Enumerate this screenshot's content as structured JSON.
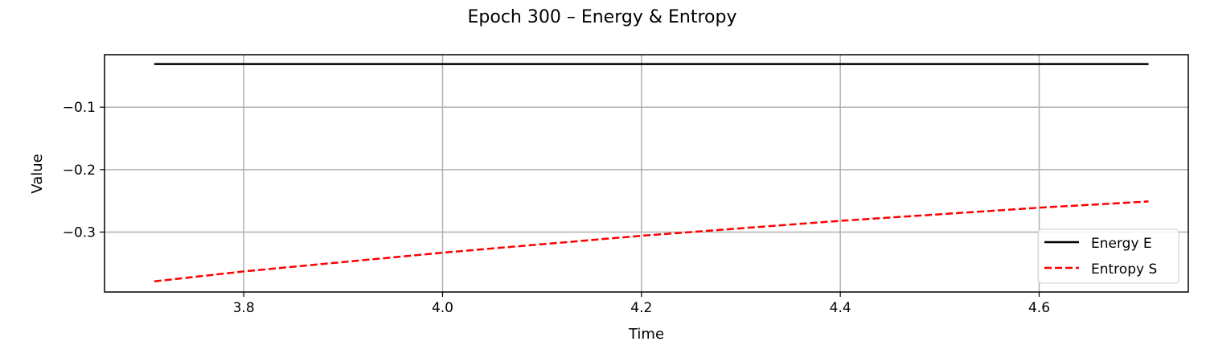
{
  "chart_data": {
    "type": "line",
    "title": "Epoch 300 – Energy & Entropy",
    "xlabel": "Time",
    "ylabel": "Value",
    "xlim": [
      3.66,
      4.75
    ],
    "ylim": [
      -0.396,
      -0.016
    ],
    "x_ticks": [
      3.8,
      4.0,
      4.2,
      4.4,
      4.6
    ],
    "x_tick_labels": [
      "3.8",
      "4.0",
      "4.2",
      "4.4",
      "4.6"
    ],
    "y_ticks": [
      -0.1,
      -0.2,
      -0.3
    ],
    "y_tick_labels": [
      "−0.1",
      "−0.2",
      "−0.3"
    ],
    "grid": true,
    "legend_position": "lower right",
    "series": [
      {
        "name": "Energy E",
        "color": "#000000",
        "style": "solid",
        "x": [
          3.71,
          4.71
        ],
        "y": [
          -0.031,
          -0.031
        ]
      },
      {
        "name": "Entropy S",
        "color": "#ff0000",
        "style": "dashed",
        "x": [
          3.71,
          3.8,
          4.0,
          4.2,
          4.4,
          4.6,
          4.71
        ],
        "y": [
          -0.379,
          -0.363,
          -0.333,
          -0.306,
          -0.282,
          -0.261,
          -0.251
        ]
      }
    ]
  }
}
